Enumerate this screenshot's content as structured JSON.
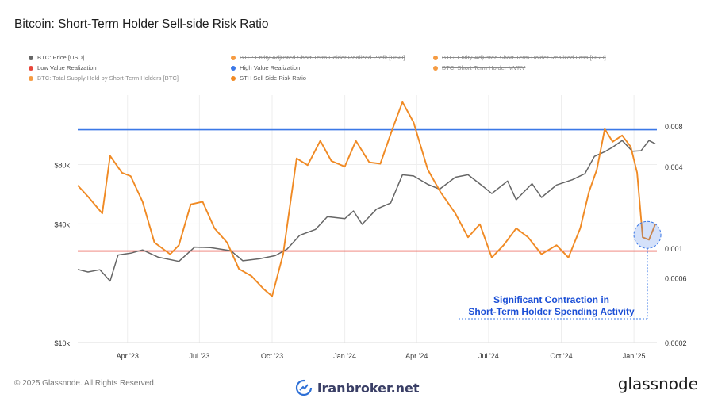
{
  "header": {
    "title": "Bitcoin: Short-Term Holder Sell-side Risk Ratio"
  },
  "legend": [
    {
      "label": "BTC: Price [USD]",
      "color": "#666666",
      "active": true
    },
    {
      "label": "BTC: Entity-Adjusted Short-Term Holder Realized Profit [USD]",
      "color": "#f59b42",
      "active": false
    },
    {
      "label": "BTC: Entity-Adjusted Short-Term Holder Realized Loss [USD]",
      "color": "#f59b42",
      "active": false
    },
    {
      "label": "Low Value Realization",
      "color": "#e8463a",
      "active": true
    },
    {
      "label": "High Value Realization",
      "color": "#3b78e7",
      "active": true
    },
    {
      "label": "BTC: Short-Term Holder MVRV",
      "color": "#f59b42",
      "active": false
    },
    {
      "label": "BTC: Total Supply Held by Short-Term Holders [BTC]",
      "color": "#f59b42",
      "active": false
    },
    {
      "label": "STH Sell Side Risk Ratio",
      "color": "#f08a24",
      "active": true
    }
  ],
  "chart_data": {
    "type": "line",
    "x_ticks": [
      "Apr '23",
      "Jul '23",
      "Oct '23",
      "Jan '24",
      "Apr '24",
      "Jul '24",
      "Oct '24",
      "Jan '25"
    ],
    "y_left_ticks": [
      "$80k",
      "$40k",
      "$10k"
    ],
    "y_right_ticks": [
      "0.008",
      "0.004",
      "0.001",
      "0.0006",
      "0.0002"
    ],
    "y_left_scale": "log",
    "y_right_scale": "log",
    "grid": true,
    "legend_placement": "top-left",
    "high_value_realization": 0.0075,
    "low_value_realization": 0.00095,
    "series": [
      {
        "name": "BTC: Price [USD]",
        "color": "#666666",
        "x": [
          "2023-01-28",
          "2023-02-10",
          "2023-02-25",
          "2023-03-10",
          "2023-03-20",
          "2023-04-05",
          "2023-04-20",
          "2023-05-10",
          "2023-06-05",
          "2023-06-25",
          "2023-07-15",
          "2023-08-10",
          "2023-08-25",
          "2023-09-15",
          "2023-10-05",
          "2023-10-20",
          "2023-11-05",
          "2023-11-25",
          "2023-12-10",
          "2024-01-01",
          "2024-01-12",
          "2024-01-23",
          "2024-02-10",
          "2024-02-28",
          "2024-03-14",
          "2024-03-28",
          "2024-04-15",
          "2024-04-30",
          "2024-05-20",
          "2024-06-05",
          "2024-06-25",
          "2024-07-05",
          "2024-07-25",
          "2024-08-05",
          "2024-08-25",
          "2024-09-06",
          "2024-09-25",
          "2024-10-15",
          "2024-10-31",
          "2024-11-12",
          "2024-11-25",
          "2024-12-05",
          "2024-12-17",
          "2024-12-30",
          "2025-01-10",
          "2025-01-20",
          "2025-01-28"
        ],
        "values": [
          23500,
          22800,
          23400,
          20500,
          27800,
          28400,
          29500,
          27100,
          25800,
          30500,
          30300,
          29200,
          26000,
          26600,
          27600,
          29800,
          35000,
          37500,
          43500,
          42500,
          46500,
          39800,
          47500,
          51000,
          71000,
          70000,
          63500,
          60000,
          69000,
          71000,
          61500,
          57000,
          66000,
          53000,
          64000,
          54500,
          63000,
          67000,
          72000,
          88000,
          93000,
          98000,
          106000,
          93500,
          94000,
          106000,
          102000
        ]
      },
      {
        "name": "STH Sell Side Risk Ratio",
        "color": "#f08a24",
        "x": [
          "2023-01-28",
          "2023-02-10",
          "2023-02-28",
          "2023-03-10",
          "2023-03-25",
          "2023-04-05",
          "2023-04-20",
          "2023-05-05",
          "2023-05-25",
          "2023-06-05",
          "2023-06-20",
          "2023-07-05",
          "2023-07-20",
          "2023-08-05",
          "2023-08-20",
          "2023-09-05",
          "2023-09-20",
          "2023-10-01",
          "2023-10-15",
          "2023-11-01",
          "2023-11-15",
          "2023-12-01",
          "2023-12-15",
          "2024-01-01",
          "2024-01-15",
          "2024-02-01",
          "2024-02-15",
          "2024-03-01",
          "2024-03-14",
          "2024-03-28",
          "2024-04-15",
          "2024-05-01",
          "2024-05-20",
          "2024-06-05",
          "2024-06-20",
          "2024-07-05",
          "2024-07-20",
          "2024-08-05",
          "2024-08-20",
          "2024-09-06",
          "2024-09-25",
          "2024-10-10",
          "2024-10-25",
          "2024-11-05",
          "2024-11-15",
          "2024-11-25",
          "2024-12-05",
          "2024-12-17",
          "2024-12-28",
          "2025-01-05",
          "2025-01-12",
          "2025-01-20",
          "2025-01-28"
        ],
        "values": [
          0.0029,
          0.0024,
          0.0018,
          0.0048,
          0.0036,
          0.0034,
          0.0022,
          0.0011,
          0.0009,
          0.00105,
          0.0021,
          0.0022,
          0.0014,
          0.0011,
          0.0007,
          0.00062,
          0.0005,
          0.00044,
          0.0009,
          0.0046,
          0.0041,
          0.0062,
          0.0044,
          0.004,
          0.0062,
          0.0043,
          0.0042,
          0.0075,
          0.012,
          0.0085,
          0.0038,
          0.0026,
          0.0018,
          0.0012,
          0.0015,
          0.00085,
          0.00105,
          0.0014,
          0.0012,
          0.0009,
          0.00105,
          0.00085,
          0.0014,
          0.0026,
          0.0038,
          0.0076,
          0.0061,
          0.0068,
          0.0056,
          0.0036,
          0.0012,
          0.00115,
          0.0015
        ]
      }
    ],
    "annotation": "Significant Contraction in\nShort-Term Holder Spending Activity"
  },
  "annotation": {
    "line1": "Significant Contraction in",
    "line2": "Short-Term Holder Spending Activity"
  },
  "footer": {
    "copyright": "© 2025 Glassnode. All Rights Reserved.",
    "watermark": "iranbroker.net",
    "brand": "glassnode"
  }
}
